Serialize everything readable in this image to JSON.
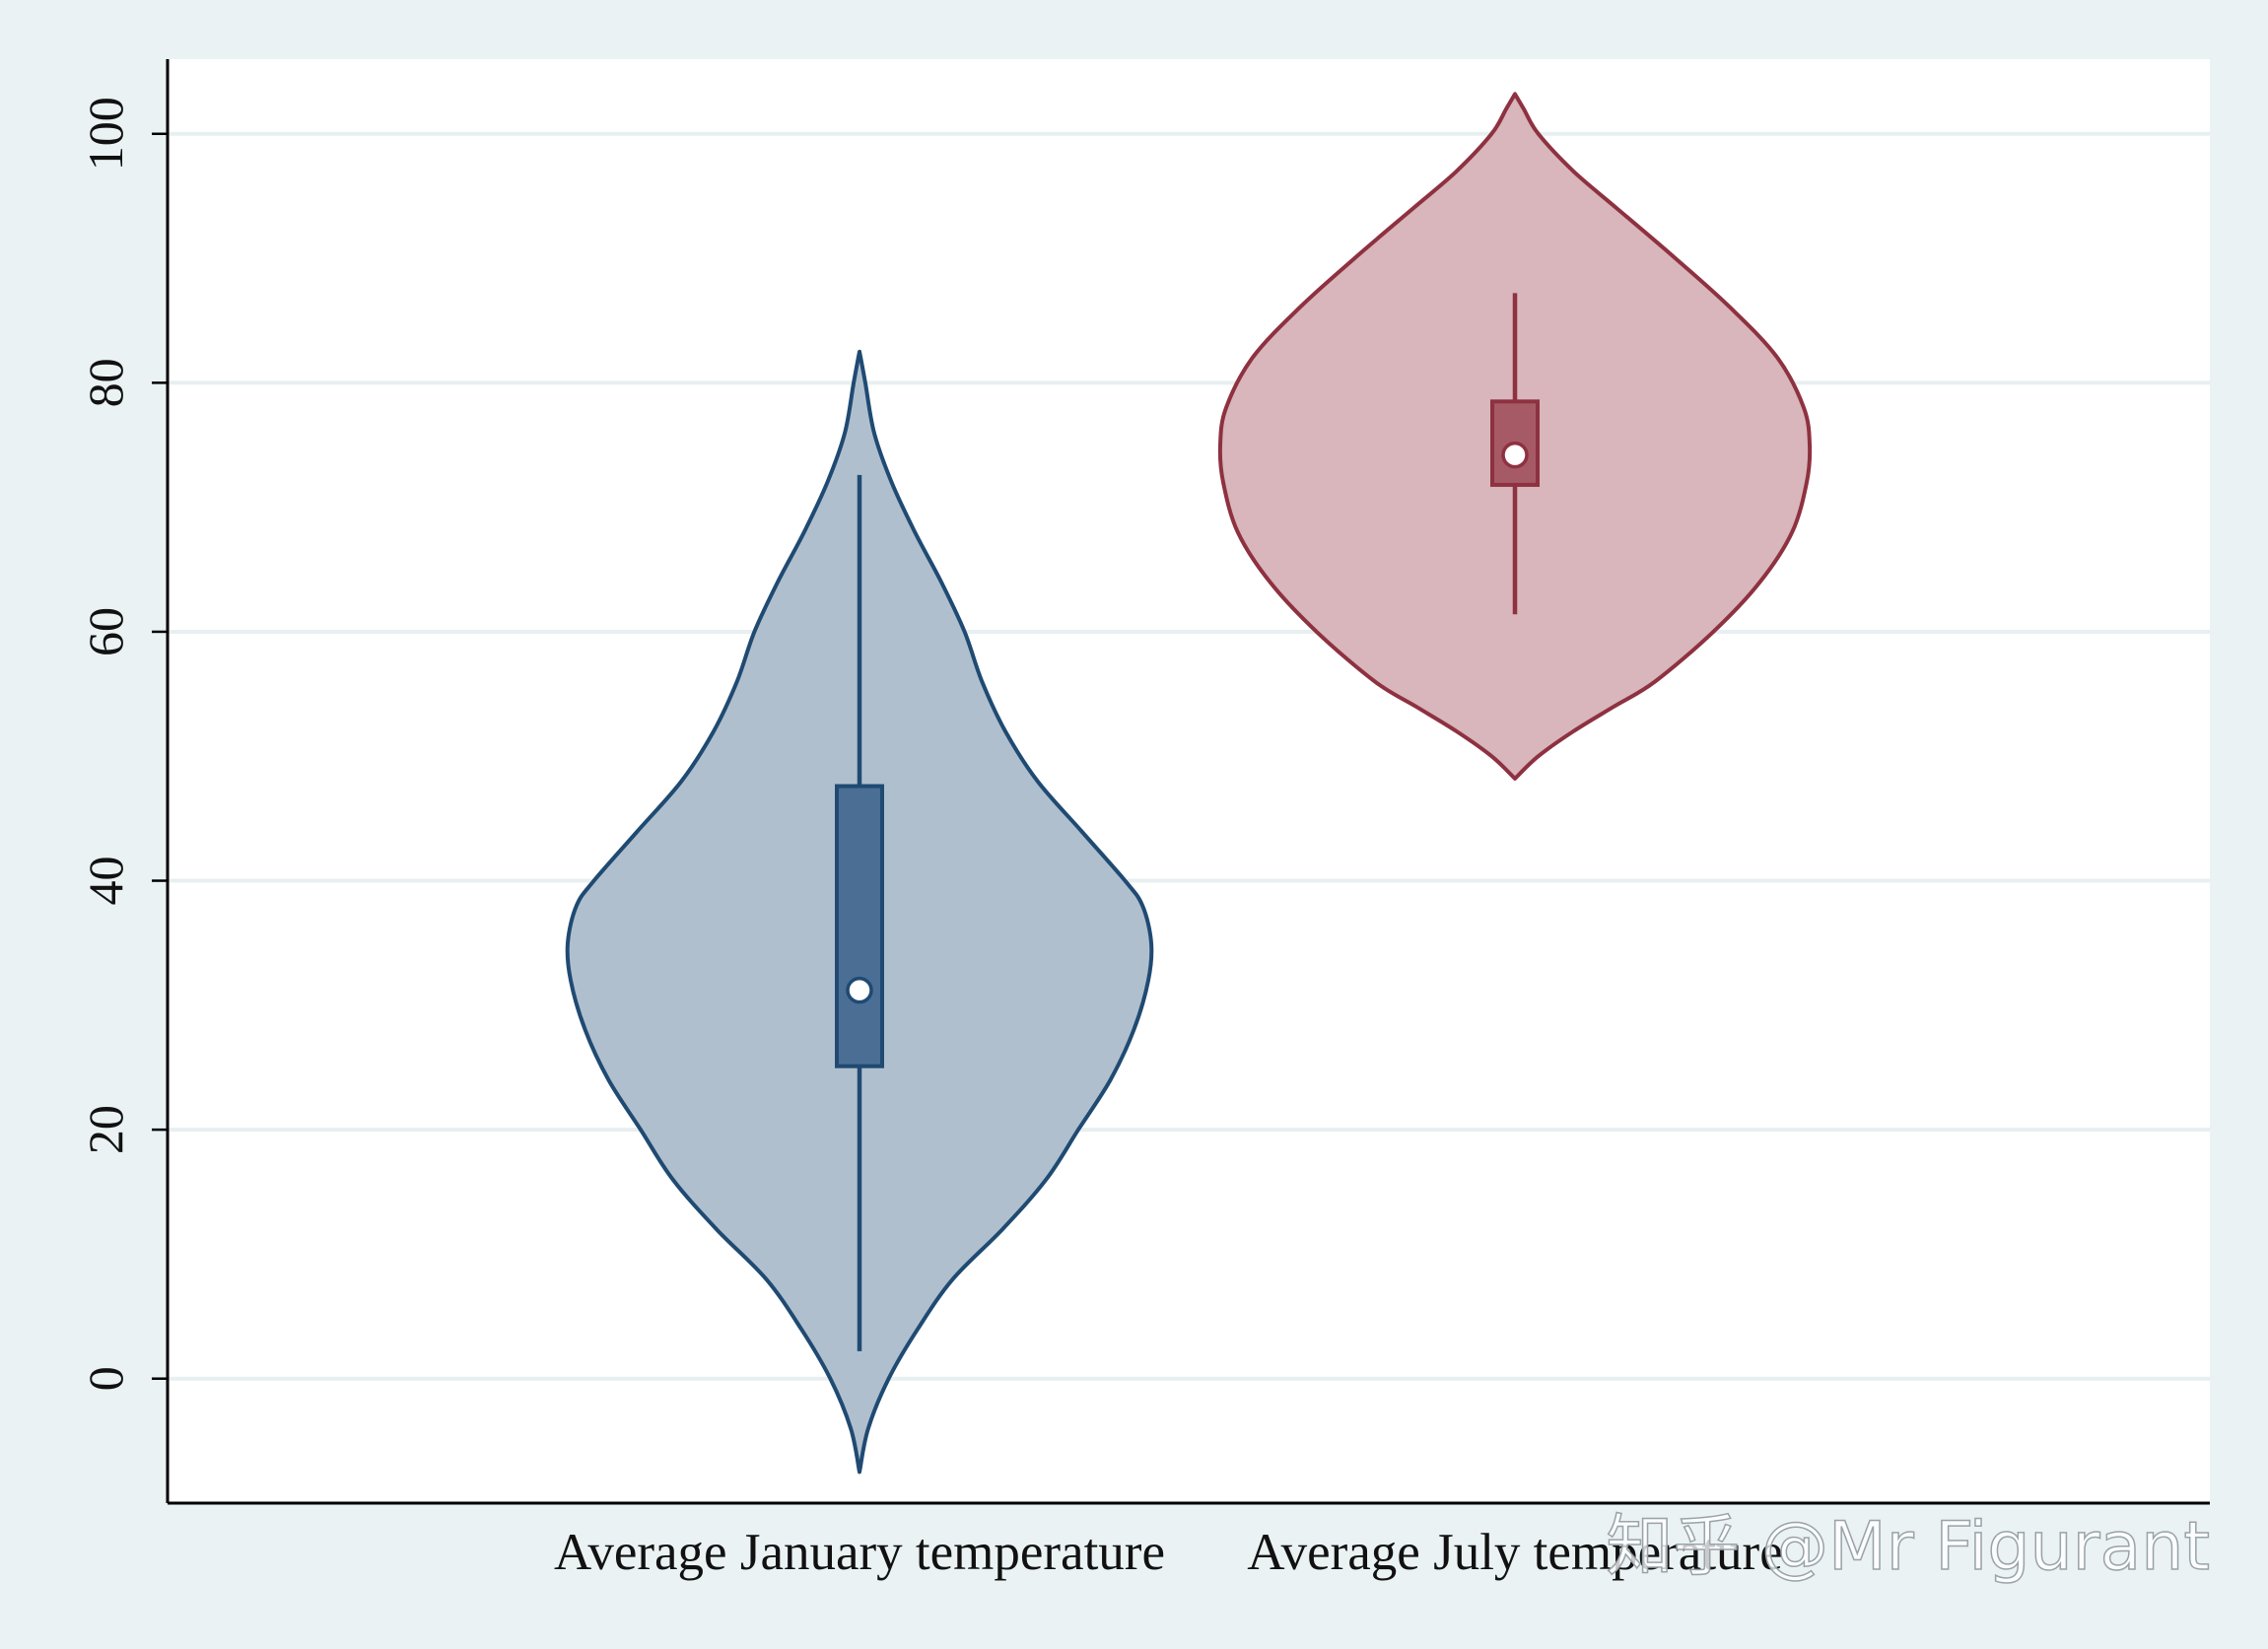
{
  "chart_data": {
    "type": "violin",
    "title": "",
    "xlabel": "",
    "ylabel": "",
    "ylim": [
      -10,
      106
    ],
    "yticks": [
      0,
      20,
      40,
      60,
      80,
      100
    ],
    "yticks_labels": [
      "0",
      "20",
      "40",
      "60",
      "80",
      "100"
    ],
    "grid": true,
    "legend": "none",
    "categories": [
      "Average January temperature",
      "Average July temperature"
    ],
    "series": [
      {
        "category": "Average January temperature",
        "color": "#1f4a72",
        "fill": "#b0bfce",
        "box_color": "#4a6e94",
        "min": 2.2,
        "q1": 25.1,
        "median": 31.2,
        "q3": 47.6,
        "max": 72.6,
        "density_range": [
          -7.5,
          82.5
        ],
        "density": [
          [
            -7.5,
            0.0
          ],
          [
            -4,
            0.03
          ],
          [
            0,
            0.1
          ],
          [
            4,
            0.2
          ],
          [
            8,
            0.32
          ],
          [
            12,
            0.49
          ],
          [
            16,
            0.64
          ],
          [
            20,
            0.75
          ],
          [
            24,
            0.86
          ],
          [
            28,
            0.94
          ],
          [
            32,
            0.99
          ],
          [
            35,
            1.0
          ],
          [
            38,
            0.97
          ],
          [
            40,
            0.91
          ],
          [
            44,
            0.76
          ],
          [
            48,
            0.61
          ],
          [
            52,
            0.5
          ],
          [
            56,
            0.42
          ],
          [
            60,
            0.36
          ],
          [
            64,
            0.28
          ],
          [
            68,
            0.19
          ],
          [
            72,
            0.11
          ],
          [
            76,
            0.05
          ],
          [
            80,
            0.02
          ],
          [
            82.5,
            0.0
          ]
        ]
      },
      {
        "category": "Average July temperature",
        "color": "#8e3140",
        "fill": "#d8b6bb",
        "box_color": "#a65a66",
        "min": 61.4,
        "q1": 71.8,
        "median": 74.2,
        "q3": 78.5,
        "max": 87.2,
        "density_range": [
          48.2,
          103.2
        ],
        "density": [
          [
            48.2,
            0.0
          ],
          [
            50,
            0.08
          ],
          [
            52,
            0.2
          ],
          [
            54,
            0.34
          ],
          [
            56,
            0.48
          ],
          [
            60,
            0.68
          ],
          [
            64,
            0.84
          ],
          [
            68,
            0.95
          ],
          [
            72,
            1.0
          ],
          [
            75,
            1.01
          ],
          [
            78,
            0.99
          ],
          [
            82,
            0.9
          ],
          [
            86,
            0.74
          ],
          [
            90,
            0.55
          ],
          [
            94,
            0.35
          ],
          [
            97,
            0.2
          ],
          [
            100,
            0.08
          ],
          [
            102,
            0.03
          ],
          [
            103.2,
            0.0
          ]
        ]
      }
    ]
  },
  "watermark": "知乎 @Mr Figurant"
}
